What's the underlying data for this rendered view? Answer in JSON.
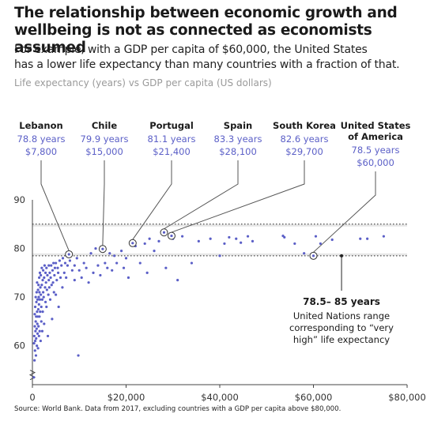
{
  "header": {
    "title_line1": "The relationship between economic growth and",
    "title_line2": "wellbeing is not as connected as economists assumed",
    "subtitle_line1": "For example, with a GDP per capita of $60,000, the United States",
    "subtitle_line2": "has a lower life expectancy than many countries with a fraction of that.",
    "axis_title": "Life expectancy (years) vs GDP per capita (US dollars)"
  },
  "source": "Source: World Bank. Data from 2017, excluding countries with a GDP per capita above $80,000.",
  "colors": {
    "points": "#5b5fc7",
    "band": "#e6e6e6",
    "text_highlight": "#5b5fc7",
    "leader": "#555555"
  },
  "annotation": {
    "range_title": "78.5– 85 years",
    "range_line1": "United Nations range",
    "range_line2": "corresponding to “very",
    "range_line3": "high” life expectancy"
  },
  "chart_data": {
    "type": "scatter",
    "title": "Life expectancy (years) vs GDP per capita (US dollars)",
    "xlabel": "GDP per capita (US dollars)",
    "ylabel": "Life expectancy (years)",
    "xlim": [
      0,
      80000
    ],
    "ylim": [
      52,
      90
    ],
    "x_ticks": [
      0,
      20000,
      40000,
      60000,
      80000
    ],
    "x_tick_labels": [
      "0",
      "$20,000",
      "$40,000",
      "$60,000",
      "$80,000"
    ],
    "y_ticks": [
      60,
      70,
      80,
      90
    ],
    "y_tick_labels": [
      "60",
      "70",
      "80",
      "90"
    ],
    "reference_band": {
      "y_min": 78.5,
      "y_max": 85
    },
    "grid": false,
    "highlighted": [
      {
        "name_line1": "Lebanon",
        "name_line2": "",
        "life_label": "78.8 years",
        "gdp_label": "$7,800",
        "x": 7800,
        "y": 78.8
      },
      {
        "name_line1": "Chile",
        "name_line2": "",
        "life_label": "79.9 years",
        "gdp_label": "$15,000",
        "x": 15000,
        "y": 79.9
      },
      {
        "name_line1": "Portugal",
        "name_line2": "",
        "life_label": "81.1 years",
        "gdp_label": "$21,400",
        "x": 21400,
        "y": 81.1
      },
      {
        "name_line1": "Spain",
        "name_line2": "",
        "life_label": "83.3 years",
        "gdp_label": "$28,100",
        "x": 28100,
        "y": 83.3
      },
      {
        "name_line1": "South Korea",
        "name_line2": "",
        "life_label": "82.6 years",
        "gdp_label": "$29,700",
        "x": 29700,
        "y": 82.6
      },
      {
        "name_line1": "United States",
        "name_line2": "of America",
        "life_label": "78.5 years",
        "gdp_label": "$60,000",
        "x": 60000,
        "y": 78.5
      }
    ],
    "points": [
      [
        300,
        53.5
      ],
      [
        350,
        60.5
      ],
      [
        400,
        62
      ],
      [
        450,
        57
      ],
      [
        500,
        64
      ],
      [
        500,
        66.5
      ],
      [
        550,
        59
      ],
      [
        600,
        61
      ],
      [
        600,
        68
      ],
      [
        650,
        63
      ],
      [
        700,
        65
      ],
      [
        700,
        70
      ],
      [
        750,
        58
      ],
      [
        800,
        61.5
      ],
      [
        800,
        66
      ],
      [
        850,
        69
      ],
      [
        900,
        63.5
      ],
      [
        900,
        71
      ],
      [
        950,
        60
      ],
      [
        1000,
        67
      ],
      [
        1000,
        73
      ],
      [
        1050,
        64.5
      ],
      [
        1100,
        62.5
      ],
      [
        1100,
        69.5
      ],
      [
        1150,
        66
      ],
      [
        1200,
        71.5
      ],
      [
        1200,
        59.5
      ],
      [
        1250,
        67.5
      ],
      [
        1300,
        64
      ],
      [
        1300,
        72.5
      ],
      [
        1350,
        70
      ],
      [
        1400,
        62
      ],
      [
        1400,
        68.5
      ],
      [
        1450,
        74
      ],
      [
        1500,
        66
      ],
      [
        1500,
        71
      ],
      [
        1550,
        63
      ],
      [
        1600,
        69.5
      ],
      [
        1600,
        75
      ],
      [
        1650,
        67
      ],
      [
        1700,
        72
      ],
      [
        1750,
        61
      ],
      [
        1800,
        70.5
      ],
      [
        1800,
        74.5
      ],
      [
        1900,
        68
      ],
      [
        1900,
        65
      ],
      [
        2000,
        72.5
      ],
      [
        2000,
        76
      ],
      [
        2100,
        69.5
      ],
      [
        2100,
        63
      ],
      [
        2200,
        73.5
      ],
      [
        2200,
        67
      ],
      [
        2300,
        71
      ],
      [
        2300,
        75.5
      ],
      [
        2400,
        70
      ],
      [
        2500,
        74
      ],
      [
        2500,
        64.5
      ],
      [
        2600,
        76.5
      ],
      [
        2700,
        72
      ],
      [
        2800,
        69
      ],
      [
        2800,
        75
      ],
      [
        2900,
        73
      ],
      [
        3000,
        76
      ],
      [
        3000,
        68
      ],
      [
        3100,
        71.5
      ],
      [
        3200,
        74.5
      ],
      [
        3300,
        62
      ],
      [
        3400,
        70.5
      ],
      [
        3500,
        76.5
      ],
      [
        3500,
        73.5
      ],
      [
        3600,
        72
      ],
      [
        3700,
        75
      ],
      [
        3800,
        69.5
      ],
      [
        3900,
        74
      ],
      [
        4000,
        76.5
      ],
      [
        4100,
        72.5
      ],
      [
        4200,
        65.5
      ],
      [
        4300,
        75.5
      ],
      [
        4400,
        73
      ],
      [
        4500,
        77
      ],
      [
        4600,
        71
      ],
      [
        4700,
        74.5
      ],
      [
        4800,
        76
      ],
      [
        5000,
        70.5
      ],
      [
        5000,
        77
      ],
      [
        5200,
        73.5
      ],
      [
        5400,
        76
      ],
      [
        5500,
        75
      ],
      [
        5600,
        68
      ],
      [
        5800,
        77.5
      ],
      [
        6000,
        74
      ],
      [
        6200,
        76.5
      ],
      [
        6400,
        72
      ],
      [
        6500,
        78
      ],
      [
        6800,
        75
      ],
      [
        7000,
        77
      ],
      [
        7200,
        74
      ],
      [
        7500,
        76.5
      ],
      [
        8000,
        77.5
      ],
      [
        8500,
        75.5
      ],
      [
        9000,
        73.5
      ],
      [
        9000,
        76.5
      ],
      [
        9500,
        78
      ],
      [
        9800,
        58
      ],
      [
        10000,
        75.5
      ],
      [
        10500,
        74
      ],
      [
        11000,
        77
      ],
      [
        11500,
        76
      ],
      [
        12000,
        73
      ],
      [
        12500,
        79
      ],
      [
        13000,
        75
      ],
      [
        13500,
        80
      ],
      [
        14000,
        76.5
      ],
      [
        14500,
        74.5
      ],
      [
        15500,
        77
      ],
      [
        16000,
        76
      ],
      [
        16500,
        79
      ],
      [
        17000,
        75.5
      ],
      [
        17500,
        78.5
      ],
      [
        18000,
        77
      ],
      [
        19000,
        79.5
      ],
      [
        19500,
        76
      ],
      [
        20000,
        78
      ],
      [
        20500,
        74
      ],
      [
        22000,
        80.5
      ],
      [
        23000,
        77
      ],
      [
        24000,
        81
      ],
      [
        24500,
        75
      ],
      [
        25000,
        82
      ],
      [
        26000,
        79.5
      ],
      [
        27000,
        81.5
      ],
      [
        28500,
        76
      ],
      [
        30000,
        82
      ],
      [
        31000,
        73.5
      ],
      [
        32000,
        82.5
      ],
      [
        34000,
        77
      ],
      [
        35500,
        81.5
      ],
      [
        38000,
        82
      ],
      [
        40000,
        78.5
      ],
      [
        41000,
        81
      ],
      [
        42000,
        82.3
      ],
      [
        43500,
        82
      ],
      [
        44500,
        81.2
      ],
      [
        46000,
        82.5
      ],
      [
        47000,
        81.5
      ],
      [
        53500,
        82.6
      ],
      [
        53800,
        82.3
      ],
      [
        56000,
        81
      ],
      [
        58000,
        79
      ],
      [
        60500,
        82.5
      ],
      [
        61500,
        81
      ],
      [
        64000,
        81.8
      ],
      [
        70000,
        82
      ],
      [
        71500,
        82
      ],
      [
        75000,
        82.5
      ]
    ]
  }
}
